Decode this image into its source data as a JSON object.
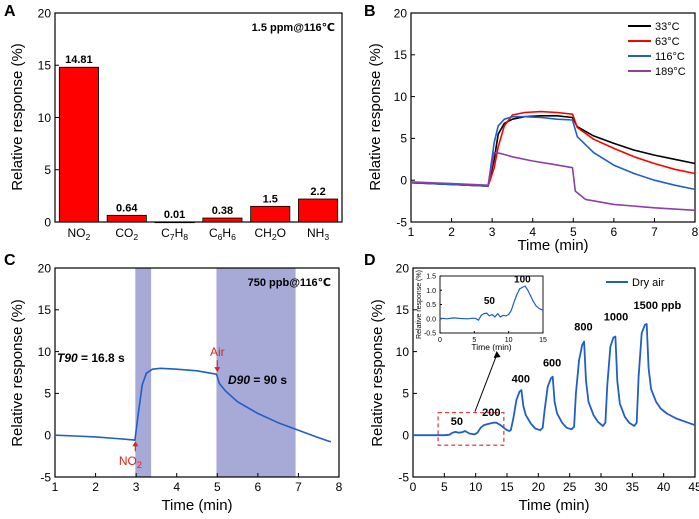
{
  "chart_data": [
    {
      "panel": "A",
      "type": "bar",
      "annotation": "1.5 ppm@116℃",
      "categories": [
        "NO2",
        "CO2",
        "C7H8",
        "C6H6",
        "CH2O",
        "NH3"
      ],
      "category_labels": [
        {
          "parts": [
            {
              "t": "NO"
            },
            {
              "t": "2",
              "sub": true
            }
          ]
        },
        {
          "parts": [
            {
              "t": "CO"
            },
            {
              "t": "2",
              "sub": true
            }
          ]
        },
        {
          "parts": [
            {
              "t": "C"
            },
            {
              "t": "7",
              "sub": true
            },
            {
              "t": "H"
            },
            {
              "t": "8",
              "sub": true
            }
          ]
        },
        {
          "parts": [
            {
              "t": "C"
            },
            {
              "t": "6",
              "sub": true
            },
            {
              "t": "H"
            },
            {
              "t": "6",
              "sub": true
            }
          ]
        },
        {
          "parts": [
            {
              "t": "CH"
            },
            {
              "t": "2",
              "sub": true
            },
            {
              "t": "O"
            }
          ]
        },
        {
          "parts": [
            {
              "t": "NH"
            },
            {
              "t": "3",
              "sub": true
            }
          ]
        }
      ],
      "values": [
        14.81,
        0.64,
        0.01,
        0.38,
        1.5,
        2.2
      ],
      "value_labels": [
        "14.81",
        "0.64",
        "0.01",
        "0.38",
        "1.5",
        "2.2"
      ],
      "bar_color": "#ff0000",
      "ylabel": "Relative response (%)",
      "ylim": [
        0,
        20
      ],
      "yticks": [
        0,
        5,
        10,
        15,
        20
      ]
    },
    {
      "panel": "B",
      "type": "line",
      "xlabel": "Time (min)",
      "ylabel": "Relative response (%)",
      "xlim": [
        1,
        8
      ],
      "ylim": [
        -5,
        20
      ],
      "xticks": [
        1,
        2,
        3,
        4,
        5,
        6,
        7,
        8
      ],
      "yticks": [
        -5,
        0,
        5,
        10,
        15,
        20
      ],
      "legend": "top-right",
      "series": [
        {
          "name": "33°C",
          "color": "#000000",
          "x": [
            1,
            2,
            2.9,
            3.05,
            3.15,
            3.3,
            3.5,
            3.8,
            4.2,
            4.6,
            4.98,
            5.1,
            5.5,
            6,
            6.5,
            7,
            7.5,
            8
          ],
          "y": [
            -0.3,
            -0.5,
            -0.7,
            2.5,
            5.5,
            6.8,
            7.3,
            7.6,
            7.7,
            7.7,
            7.5,
            6.4,
            5.3,
            4.4,
            3.6,
            3.0,
            2.5,
            2.0
          ]
        },
        {
          "name": "63°C",
          "color": "#ff0000",
          "x": [
            1,
            2,
            2.9,
            3.05,
            3.15,
            3.3,
            3.5,
            3.8,
            4.2,
            4.6,
            4.98,
            5.1,
            5.5,
            6,
            6.5,
            7,
            7.5,
            8
          ],
          "y": [
            -0.3,
            -0.5,
            -0.7,
            1.5,
            4.0,
            6.5,
            7.8,
            8.1,
            8.2,
            8.1,
            7.9,
            6.3,
            4.9,
            3.8,
            2.8,
            2.0,
            1.3,
            0.8
          ]
        },
        {
          "name": "116°C",
          "color": "#1f5fc8",
          "x": [
            1,
            2,
            2.9,
            3.05,
            3.15,
            3.3,
            3.5,
            3.8,
            4.2,
            4.6,
            4.98,
            5.1,
            5.5,
            6,
            6.5,
            7,
            7.5,
            8
          ],
          "y": [
            -0.3,
            -0.5,
            -0.7,
            4.5,
            6.5,
            7.3,
            7.6,
            7.6,
            7.5,
            7.3,
            7.2,
            5.2,
            3.3,
            1.8,
            0.8,
            0.0,
            -0.6,
            -1.1
          ]
        },
        {
          "name": "189°C",
          "color": "#8e3fa6",
          "x": [
            1,
            2,
            2.9,
            3.05,
            3.2,
            3.5,
            4,
            4.5,
            4.98,
            5.05,
            5.3,
            6,
            7,
            8
          ],
          "y": [
            -0.2,
            -0.4,
            -0.6,
            3.3,
            3.2,
            2.8,
            2.3,
            1.9,
            1.5,
            -1.3,
            -2.3,
            -2.9,
            -3.3,
            -3.6
          ]
        }
      ]
    },
    {
      "panel": "C",
      "type": "line",
      "annotation": "750 ppb@116℃",
      "xlabel": "Time (min)",
      "ylabel": "Relative response (%)",
      "xlim": [
        1,
        8
      ],
      "ylim": [
        -5,
        20
      ],
      "xticks": [
        1,
        2,
        3,
        4,
        5,
        6,
        7,
        8
      ],
      "yticks": [
        -5,
        0,
        5,
        10,
        15,
        20
      ],
      "shaded_regions": [
        [
          2.98,
          3.37
        ],
        [
          4.98,
          6.93
        ]
      ],
      "shade_color": "#a7a9d6",
      "t90_label": "T90",
      "t90_value": " = 16.8 s",
      "d90_label": "D90",
      "d90_value": " = 90 s",
      "air_label": "Air",
      "no2_label": "NO",
      "no2_sub": "2",
      "arrow_color": "#e02020",
      "events": {
        "no2_x": 2.98,
        "air_x": 5.0
      },
      "series": [
        {
          "name": "response",
          "color": "#1f5fc8",
          "x": [
            1,
            1.5,
            2,
            2.5,
            2.9,
            2.97,
            3.05,
            3.15,
            3.25,
            3.4,
            3.6,
            4,
            4.5,
            4.98,
            5.05,
            5.2,
            5.5,
            6,
            6.5,
            7,
            7.5,
            7.8
          ],
          "y": [
            0,
            -0.1,
            -0.2,
            -0.4,
            -0.55,
            -0.6,
            2.5,
            6.0,
            7.4,
            7.9,
            8.0,
            7.9,
            7.7,
            7.3,
            6.2,
            5.3,
            4.0,
            2.6,
            1.5,
            0.6,
            -0.3,
            -0.8
          ]
        }
      ]
    },
    {
      "panel": "D",
      "type": "line",
      "xlabel": "Time (min)",
      "ylabel": "Relative response (%)",
      "xlim": [
        0,
        45
      ],
      "ylim": [
        -5,
        20
      ],
      "xticks": [
        0,
        5,
        10,
        15,
        20,
        25,
        30,
        35,
        40,
        45
      ],
      "yticks": [
        -5,
        0,
        5,
        10,
        15,
        20
      ],
      "legend": "top-right",
      "concentration_labels": [
        {
          "text": "50",
          "x": 7,
          "y": 1.2
        },
        {
          "text": "200",
          "x": 12.5,
          "y": 2.3
        },
        {
          "text": "400",
          "x": 17.2,
          "y": 6.3
        },
        {
          "text": "600",
          "x": 22.2,
          "y": 8.2
        },
        {
          "text": "800",
          "x": 27.2,
          "y": 12.5
        },
        {
          "text": "1000",
          "x": 32.4,
          "y": 13.7
        },
        {
          "text": "1500 ppb",
          "x": 39,
          "y": 15.1
        }
      ],
      "highlight_box": {
        "x": [
          4,
          14.5
        ],
        "y": [
          -1.2,
          2.7
        ],
        "color": "#e02020"
      },
      "series": [
        {
          "name": "Dry air",
          "color": "#1f5fc8",
          "x": [
            0,
            2,
            4,
            5,
            5.8,
            6.3,
            6.8,
            7.3,
            7.8,
            8.3,
            9,
            9.8,
            10.3,
            10.8,
            11.3,
            11.8,
            12.3,
            12.8,
            13.3,
            14,
            14.8,
            15.3,
            15.6,
            16,
            16.5,
            17,
            17.3,
            17.6,
            18,
            18.8,
            19.5,
            20.3,
            20.7,
            21,
            21.5,
            22,
            22.3,
            22.6,
            23,
            23.8,
            24.5,
            25.3,
            25.7,
            26,
            26.5,
            27,
            27.3,
            27.6,
            28,
            28.8,
            29.5,
            30.3,
            30.7,
            31,
            31.5,
            32,
            32.3,
            32.6,
            33,
            33.8,
            34.5,
            35.3,
            35.7,
            36,
            36.5,
            37,
            37.3,
            37.6,
            38,
            38.8,
            39.5,
            40.5,
            42,
            43.5,
            45
          ],
          "y": [
            0,
            0,
            0,
            0,
            0.05,
            0.3,
            0.4,
            0.3,
            0.35,
            0.5,
            0.2,
            0.1,
            0.3,
            0.9,
            1.2,
            1.3,
            1.4,
            1.5,
            1.5,
            1.2,
            0.7,
            0.5,
            0.6,
            2.0,
            4.2,
            5.2,
            5.4,
            3.5,
            2.4,
            1.4,
            0.8,
            0.6,
            0.9,
            3.0,
            5.8,
            6.8,
            7.0,
            4.0,
            2.6,
            1.5,
            0.9,
            0.7,
            1.0,
            5.0,
            9.0,
            10.8,
            11.2,
            6.5,
            4.0,
            2.4,
            1.6,
            1.1,
            1.5,
            6.0,
            10.6,
            11.7,
            11.8,
            6.5,
            3.8,
            2.2,
            1.5,
            1.1,
            1.5,
            7.0,
            12.2,
            13.2,
            13.3,
            8.0,
            5.5,
            4.0,
            3.2,
            2.6,
            2.0,
            1.6,
            1.2
          ]
        }
      ],
      "inset": {
        "xlabel": "Time (min)",
        "ylabel": "Relative response (%)",
        "xlim": [
          0,
          15
        ],
        "ylim": [
          -0.5,
          1.5
        ],
        "xticks": [
          0,
          5,
          10,
          15
        ],
        "yticks": [
          -0.5,
          0.0,
          0.5,
          1.0,
          1.5
        ],
        "ytick_labels": [
          "-0.5",
          "0.0",
          "0.5",
          "1.0",
          "1.5"
        ],
        "labels": [
          {
            "text": "50",
            "x": 7.2,
            "y": 0.52
          },
          {
            "text": "100",
            "x": 12.0,
            "y": 1.27
          }
        ],
        "series": {
          "color": "#1f5fc8",
          "x": [
            0,
            1,
            2,
            3,
            4,
            4.8,
            5.2,
            5.6,
            6.0,
            6.4,
            6.8,
            7.2,
            7.6,
            8.0,
            8.4,
            8.8,
            9.2,
            9.6,
            10.0,
            10.4,
            10.8,
            11.2,
            11.6,
            12.0,
            12.4,
            12.8,
            13.2,
            13.6,
            14.0,
            14.5,
            15.0
          ],
          "y": [
            0.02,
            0.0,
            0.03,
            0.01,
            0.0,
            0.02,
            0.01,
            -0.05,
            0.12,
            0.18,
            0.2,
            0.1,
            0.15,
            0.06,
            0.18,
            0.06,
            0.12,
            0.1,
            0.15,
            0.3,
            0.6,
            0.85,
            1.05,
            1.1,
            1.15,
            1.0,
            0.8,
            0.6,
            0.45,
            0.35,
            0.3
          ]
        }
      }
    }
  ]
}
